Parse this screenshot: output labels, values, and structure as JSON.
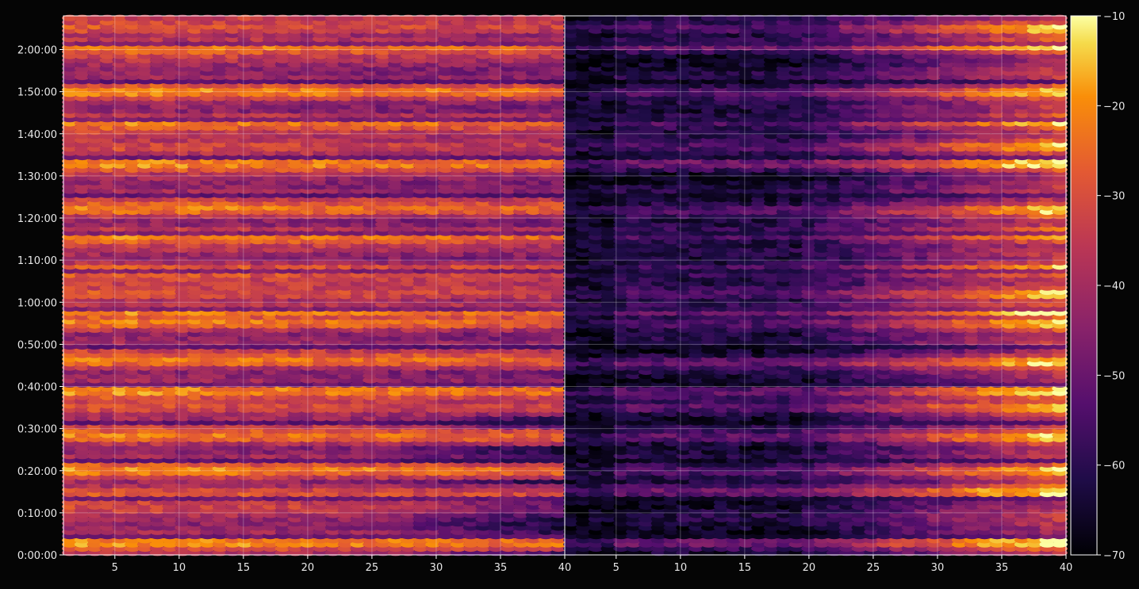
{
  "chart_data": {
    "type": "heatmap",
    "colormap": "inferno",
    "background": "#050505",
    "grid": true,
    "panels": [
      {
        "name": "left-panel",
        "x_range": [
          1,
          40
        ],
        "x_ticks": [
          "5",
          "10",
          "15",
          "20",
          "25",
          "30",
          "35",
          "40"
        ],
        "x_tick_values": [
          5,
          10,
          15,
          20,
          25,
          30,
          35,
          40
        ],
        "intensity_profile": "high"
      },
      {
        "name": "right-panel",
        "x_range": [
          1,
          40
        ],
        "x_ticks": [
          "5",
          "10",
          "15",
          "20",
          "25",
          "30",
          "35",
          "40"
        ],
        "x_tick_values": [
          5,
          10,
          15,
          20,
          25,
          30,
          35,
          40
        ],
        "intensity_profile": "low-left-rising-right"
      }
    ],
    "y_range_seconds": [
      0,
      7680
    ],
    "y_ticks": [
      "0:00:00",
      "0:10:00",
      "0:20:00",
      "0:30:00",
      "0:40:00",
      "0:50:00",
      "1:00:00",
      "1:10:00",
      "1:20:00",
      "1:30:00",
      "1:40:00",
      "1:50:00",
      "2:00:00"
    ],
    "y_tick_values": [
      0,
      600,
      1200,
      1800,
      2400,
      3000,
      3600,
      4200,
      4800,
      5400,
      6000,
      6600,
      7200
    ],
    "bright_rows_seconds": [
      180,
      900,
      1200,
      1680,
      2100,
      2340,
      2760,
      3300,
      3480,
      3720,
      4080,
      4560,
      4920,
      5580,
      5820,
      6180,
      6600,
      7260,
      7500
    ],
    "colorbar": {
      "range": [
        -70,
        -10
      ],
      "ticks": [
        "−10",
        "−20",
        "−30",
        "−40",
        "−50",
        "−60",
        "−70"
      ],
      "tick_values": [
        -10,
        -20,
        -30,
        -40,
        -50,
        -60,
        -70
      ]
    }
  }
}
